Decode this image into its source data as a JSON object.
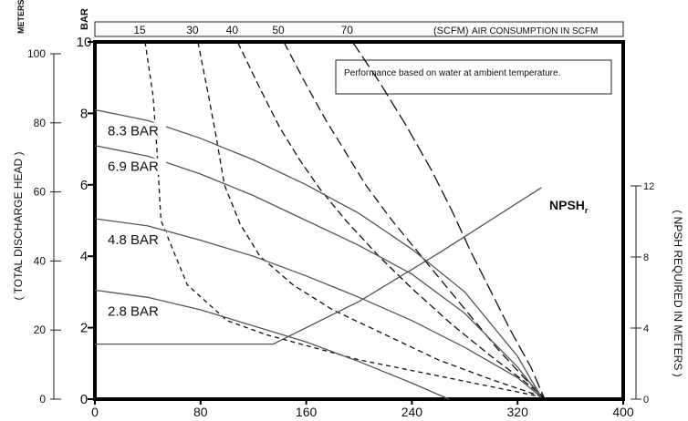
{
  "chart_data": {
    "type": "line",
    "x_axis": {
      "label": "",
      "ticks": [
        "0",
        "80",
        "160",
        "240",
        "320",
        "400"
      ],
      "range": [
        0,
        400
      ]
    },
    "y_axis_bar": {
      "unit_label": "BAR",
      "ticks": [
        "0",
        "2",
        "4",
        "6",
        "8",
        "10"
      ],
      "range": [
        0,
        10
      ]
    },
    "y_axis_meters": {
      "unit_label": "METERS",
      "label": "( TOTAL DISCHARGE HEAD )",
      "ticks": [
        "0",
        "20",
        "40",
        "60",
        "80",
        "100"
      ]
    },
    "y_axis_npsh": {
      "label": "( NPSH REQUIRED IN METERS )",
      "ticks": [
        "0",
        "4",
        "8",
        "12"
      ],
      "range": [
        0,
        12
      ]
    },
    "top_axis": {
      "prefix": "(SCFM)",
      "label": "AIR CONSUMPTION IN SCFM",
      "ticks": [
        "15",
        "30",
        "40",
        "50",
        "70"
      ]
    },
    "note": "Performance based on water at ambient temperature.",
    "npsh_label": "NPSH",
    "npsh_sub": "r",
    "pressure_series": [
      {
        "name": "8.3 BAR",
        "x": [
          0,
          40,
          80,
          120,
          160,
          200,
          240,
          280,
          320,
          338
        ],
        "y": [
          8.1,
          7.8,
          7.3,
          6.7,
          6.0,
          5.2,
          4.2,
          3.0,
          1.2,
          0.05
        ]
      },
      {
        "name": "6.9 BAR",
        "x": [
          0,
          40,
          80,
          120,
          160,
          200,
          240,
          280,
          320,
          338
        ],
        "y": [
          7.1,
          6.8,
          6.3,
          5.7,
          5.0,
          4.3,
          3.5,
          2.4,
          0.9,
          0.05
        ]
      },
      {
        "name": "4.8 BAR",
        "x": [
          0,
          40,
          80,
          120,
          160,
          200,
          240,
          280,
          320,
          338
        ],
        "y": [
          5.05,
          4.85,
          4.45,
          4.0,
          3.45,
          2.85,
          2.2,
          1.45,
          0.6,
          0.05
        ]
      },
      {
        "name": "2.8 BAR",
        "x": [
          0,
          40,
          80,
          120,
          160,
          200,
          240,
          268
        ],
        "y": [
          3.05,
          2.85,
          2.5,
          2.05,
          1.6,
          1.05,
          0.45,
          0.0
        ]
      }
    ],
    "npsh_series": {
      "x": [
        0,
        135,
        200,
        260,
        338
      ],
      "y": [
        3.1,
        3.1,
        5.5,
        8.2,
        11.9
      ]
    },
    "air_series": [
      {
        "name": "15",
        "x": [
          38,
          44,
          47,
          50,
          70,
          100,
          130,
          160,
          200,
          240,
          300,
          340
        ],
        "y": [
          10,
          8.5,
          7.0,
          5.0,
          3.2,
          2.2,
          1.8,
          1.5,
          1.1,
          0.8,
          0.35,
          0.05
        ]
      },
      {
        "name": "30",
        "x": [
          78,
          86,
          92,
          98,
          110,
          125,
          150,
          180,
          220,
          260,
          300,
          340
        ],
        "y": [
          10,
          8.5,
          7.3,
          6.0,
          4.9,
          4.0,
          3.2,
          2.5,
          1.8,
          1.1,
          0.55,
          0.05
        ]
      },
      {
        "name": "40",
        "x": [
          108,
          125,
          140,
          155,
          170,
          190,
          215,
          240,
          270,
          300,
          325,
          340
        ],
        "y": [
          10,
          8.7,
          7.6,
          6.7,
          5.9,
          5.0,
          4.0,
          3.1,
          2.1,
          1.2,
          0.5,
          0.05
        ]
      },
      {
        "name": "50",
        "x": [
          143,
          160,
          175,
          190,
          205,
          225,
          245,
          265,
          285,
          305,
          325,
          340
        ],
        "y": [
          10,
          8.8,
          7.8,
          6.9,
          6.0,
          5.0,
          4.1,
          3.2,
          2.3,
          1.4,
          0.6,
          0.05
        ]
      },
      {
        "name": "70",
        "x": [
          195,
          215,
          235,
          255,
          270,
          285,
          300,
          315,
          330,
          340
        ],
        "y": [
          10,
          8.9,
          7.7,
          6.4,
          5.3,
          4.1,
          3.0,
          1.9,
          0.9,
          0.05
        ]
      }
    ]
  }
}
